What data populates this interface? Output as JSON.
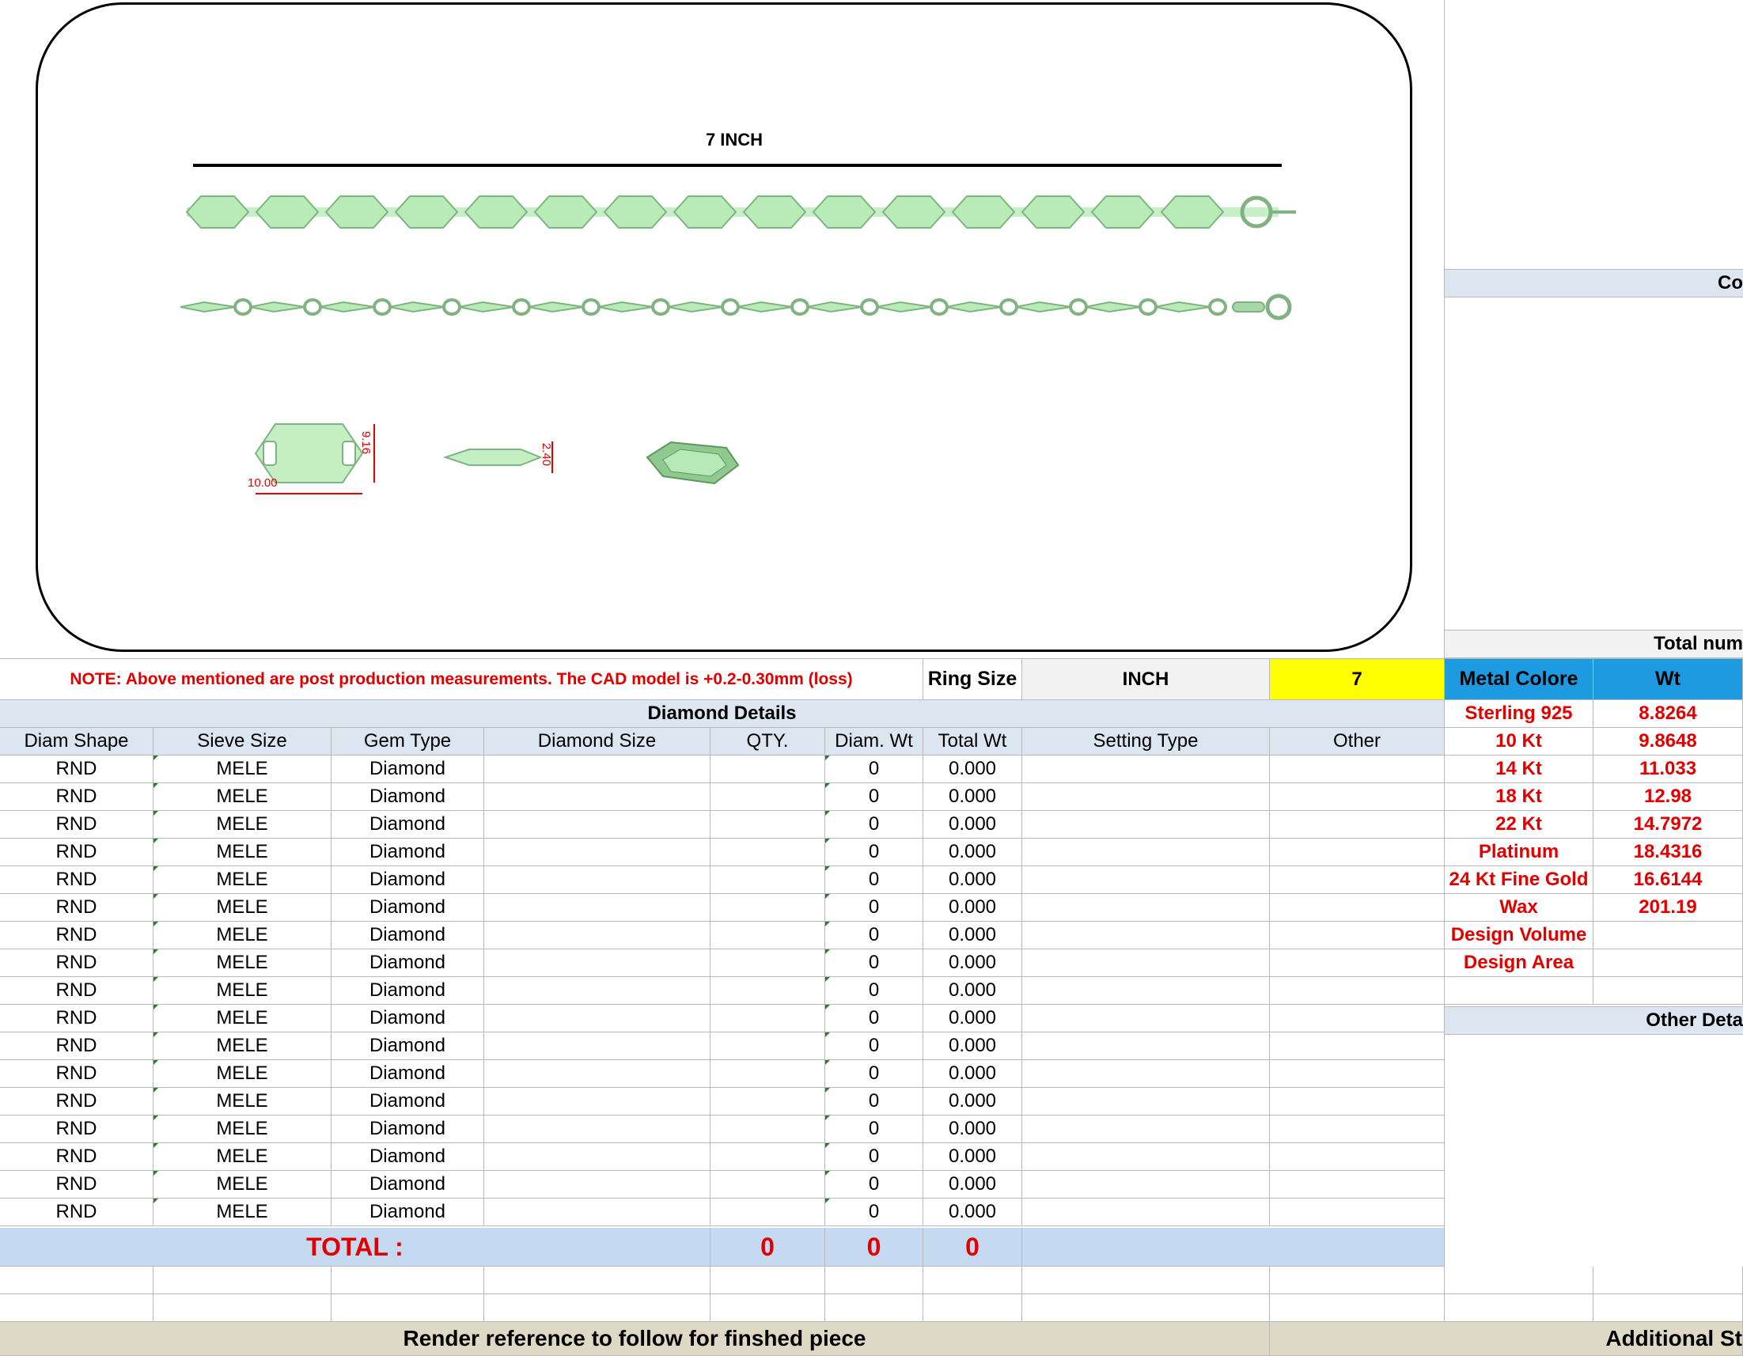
{
  "image_panel": {
    "scale_label": "7 INCH",
    "dim_width": "10.00",
    "dim_height": "9.16",
    "dim_thickness": "2.40"
  },
  "note_row": {
    "note": "NOTE: Above mentioned are post production measurements. The CAD model is +0.2-0.30mm (loss)",
    "ring_size_label": "Ring Size",
    "unit": "INCH",
    "size_value": "7"
  },
  "diamond_table": {
    "title": "Diamond Details",
    "headers": [
      "Diam Shape",
      "Sieve Size",
      "Gem Type",
      "Diamond Size",
      "QTY.",
      "Diam. Wt",
      "Total Wt",
      "Setting Type",
      "Other"
    ],
    "rows": [
      [
        "RND",
        "MELE",
        "Diamond",
        "",
        "",
        "0",
        "0.000",
        "",
        ""
      ],
      [
        "RND",
        "MELE",
        "Diamond",
        "",
        "",
        "0",
        "0.000",
        "",
        ""
      ],
      [
        "RND",
        "MELE",
        "Diamond",
        "",
        "",
        "0",
        "0.000",
        "",
        ""
      ],
      [
        "RND",
        "MELE",
        "Diamond",
        "",
        "",
        "0",
        "0.000",
        "",
        ""
      ],
      [
        "RND",
        "MELE",
        "Diamond",
        "",
        "",
        "0",
        "0.000",
        "",
        ""
      ],
      [
        "RND",
        "MELE",
        "Diamond",
        "",
        "",
        "0",
        "0.000",
        "",
        ""
      ],
      [
        "RND",
        "MELE",
        "Diamond",
        "",
        "",
        "0",
        "0.000",
        "",
        ""
      ],
      [
        "RND",
        "MELE",
        "Diamond",
        "",
        "",
        "0",
        "0.000",
        "",
        ""
      ],
      [
        "RND",
        "MELE",
        "Diamond",
        "",
        "",
        "0",
        "0.000",
        "",
        ""
      ],
      [
        "RND",
        "MELE",
        "Diamond",
        "",
        "",
        "0",
        "0.000",
        "",
        ""
      ],
      [
        "RND",
        "MELE",
        "Diamond",
        "",
        "",
        "0",
        "0.000",
        "",
        ""
      ],
      [
        "RND",
        "MELE",
        "Diamond",
        "",
        "",
        "0",
        "0.000",
        "",
        ""
      ],
      [
        "RND",
        "MELE",
        "Diamond",
        "",
        "",
        "0",
        "0.000",
        "",
        ""
      ],
      [
        "RND",
        "MELE",
        "Diamond",
        "",
        "",
        "0",
        "0.000",
        "",
        ""
      ],
      [
        "RND",
        "MELE",
        "Diamond",
        "",
        "",
        "0",
        "0.000",
        "",
        ""
      ],
      [
        "RND",
        "MELE",
        "Diamond",
        "",
        "",
        "0",
        "0.000",
        "",
        ""
      ],
      [
        "RND",
        "MELE",
        "Diamond",
        "",
        "",
        "0",
        "0.000",
        "",
        ""
      ]
    ],
    "total_label": "TOTAL :",
    "total_qty": "0",
    "total_diam_wt": "0",
    "total_wt": "0"
  },
  "metal_table": {
    "header_color": "Metal Colore",
    "header_wt": "Wt",
    "rows": [
      [
        "Sterling 925",
        "8.8264"
      ],
      [
        "10 Kt",
        "9.8648"
      ],
      [
        "14 Kt",
        "11.033"
      ],
      [
        "18 Kt",
        "12.98"
      ],
      [
        "22 Kt",
        "14.7972"
      ],
      [
        "Platinum",
        "18.4316"
      ],
      [
        "24 Kt Fine Gold",
        "16.6144"
      ],
      [
        "Wax",
        "201.19"
      ],
      [
        "Design Volume",
        ""
      ],
      [
        "Design Area",
        ""
      ]
    ]
  },
  "side_panel": {
    "band1_partial": "Co",
    "band2_partial": "Total num",
    "band3_partial": "Other Deta"
  },
  "footer": {
    "render_reference": "Render reference to follow for finshed piece",
    "additional_partial": "Additional St"
  },
  "colors": {
    "header_bg": "#dce6f1",
    "total_bg": "#c5d9f1",
    "metal_header_bg": "#1e9ae0",
    "highlight_yellow": "#ffff00",
    "footer_bg": "#ddd9c4",
    "accent_red": "#e00000",
    "chain_green": "#b5e8b5"
  }
}
